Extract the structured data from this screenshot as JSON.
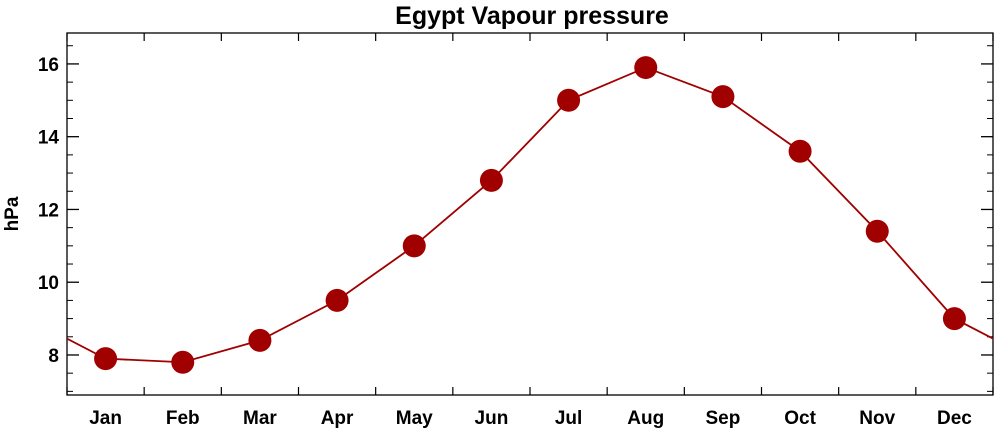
{
  "chart_data": {
    "type": "line",
    "title": "Egypt Vapour pressure",
    "xlabel": "",
    "ylabel": "hPa",
    "categories": [
      "Jan",
      "Feb",
      "Mar",
      "Apr",
      "May",
      "Jun",
      "Jul",
      "Aug",
      "Sep",
      "Oct",
      "Nov",
      "Dec"
    ],
    "series": [
      {
        "values": [
          7.9,
          7.8,
          8.4,
          9.5,
          11.0,
          12.8,
          15.0,
          15.9,
          15.1,
          13.6,
          11.4,
          9.0
        ]
      }
    ],
    "ylim": [
      6.9,
      16.85
    ],
    "yticks": [
      8,
      10,
      12,
      14,
      16
    ],
    "yticks_minor": [
      7,
      7.5,
      8.5,
      9,
      9.5,
      10.5,
      11,
      11.5,
      12.5,
      13,
      13.5,
      14.5,
      15,
      15.5,
      16.5
    ],
    "ytick_labels": [
      "8",
      "10",
      "12",
      "14",
      "16"
    ],
    "cyclic": true,
    "grid": false,
    "legend": "none",
    "colors": {
      "line": "#a00000",
      "marker": "#a00000",
      "axes": "#000000"
    }
  }
}
